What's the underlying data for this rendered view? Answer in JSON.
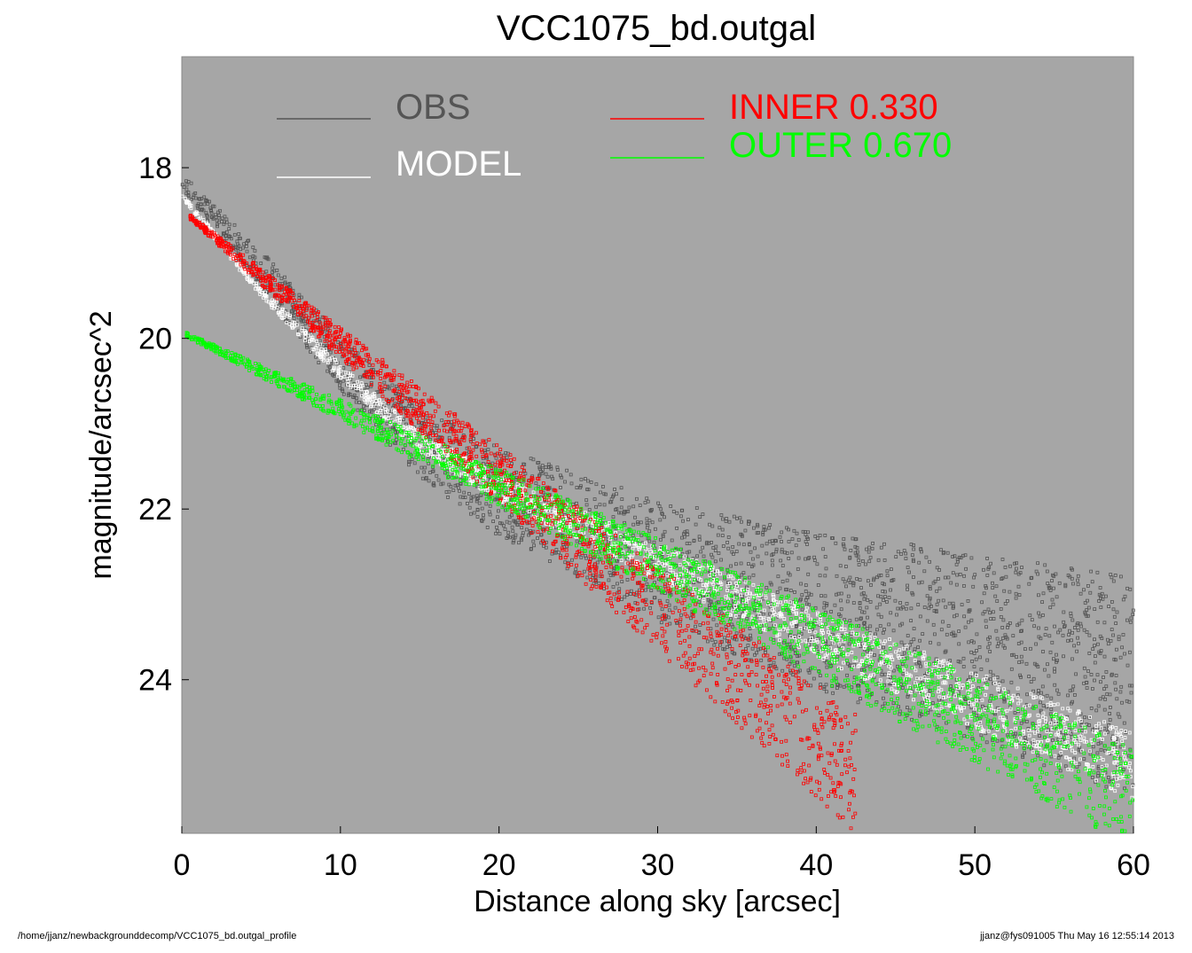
{
  "chart_data": {
    "type": "scatter",
    "title": "VCC1075_bd.outgal",
    "xlabel": "Distance along sky [arcsec]",
    "ylabel": "magnitude/arcsec^2",
    "xlim": [
      0,
      60
    ],
    "ylim": [
      25.8,
      16.7
    ],
    "x_ticks": [
      0,
      10,
      20,
      30,
      40,
      50,
      60
    ],
    "y_ticks": [
      18,
      20,
      22,
      24
    ],
    "y_inverted": true,
    "background_color": "#a6a6a6",
    "grid": false,
    "legend_position": "top",
    "series": [
      {
        "name": "OBS",
        "color": "#555555",
        "description_points": {
          "x": [
            0,
            5,
            10,
            15,
            20,
            30,
            40,
            50,
            60
          ],
          "y": [
            18.2,
            19.2,
            20.3,
            21.2,
            21.8,
            22.6,
            23.2,
            23.6,
            24.1
          ]
        },
        "spread": 0.9
      },
      {
        "name": "MODEL",
        "color": "#ffffff",
        "description_points": {
          "x": [
            0,
            5,
            10,
            15,
            20,
            30,
            40,
            50,
            60
          ],
          "y": [
            18.3,
            19.4,
            20.3,
            21.1,
            21.6,
            22.4,
            23.2,
            23.9,
            24.6
          ]
        },
        "band_width": [
          0.05,
          0.8
        ]
      },
      {
        "name": "INNER",
        "label_value": "0.330",
        "color": "#ff0000",
        "line": {
          "x0": 0.5,
          "y0": 18.6,
          "x1": 42.5,
          "y1": 25.8
        },
        "band_width": [
          0.05,
          1.4
        ]
      },
      {
        "name": "OUTER",
        "label_value": "0.670",
        "color": "#00ff00",
        "line": {
          "x0": 0.3,
          "y0": 19.95,
          "x1": 60,
          "y1": 25.2
        },
        "band_width": [
          0.05,
          1.2
        ]
      }
    ],
    "legend": [
      {
        "name": "OBS",
        "color": "#555555"
      },
      {
        "name": "MODEL",
        "color": "#ffffff"
      },
      {
        "name": "INNER",
        "value": "0.330",
        "color": "#ff0000"
      },
      {
        "name": "OUTER",
        "value": "0.670",
        "color": "#00ff00"
      }
    ]
  },
  "footer": {
    "left": "/home/jjanz/newbackgrounddecomp/VCC1075_bd.outgal_profile",
    "right": "jjanz@fys091005  Thu May 16 12:55:14 2013"
  }
}
